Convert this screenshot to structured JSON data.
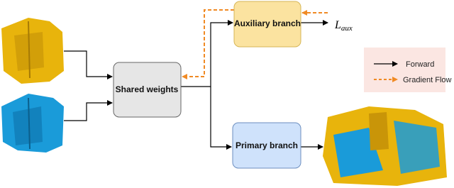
{
  "nodes": [
    {
      "label": "Auxiliary branch"
    },
    {
      "label": "Shared weights"
    },
    {
      "label": "Primary branch"
    }
  ],
  "loss": {
    "symbol": "L",
    "subscript": "aux"
  },
  "legend": [
    {
      "label": "Forward"
    },
    {
      "label": "Gradient Flow"
    }
  ]
}
